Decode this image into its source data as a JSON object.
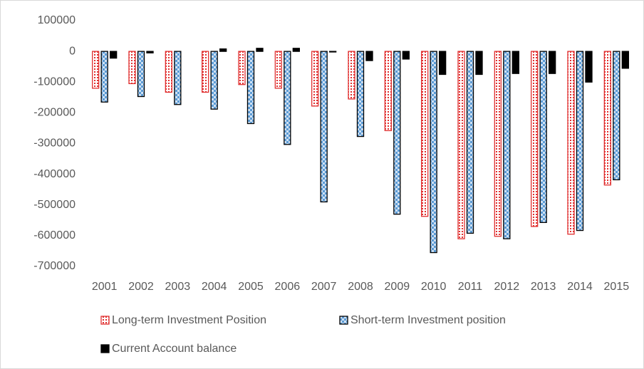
{
  "chart_data": {
    "type": "bar",
    "categories": [
      "2001",
      "2002",
      "2003",
      "2004",
      "2005",
      "2006",
      "2007",
      "2008",
      "2009",
      "2010",
      "2011",
      "2012",
      "2013",
      "2014",
      "2015"
    ],
    "series": [
      {
        "name": "Long-term Investment  Position",
        "color": "#e03030",
        "values": [
          -120000,
          -105000,
          -133000,
          -133000,
          -108000,
          -120000,
          -178000,
          -155000,
          -258000,
          -537000,
          -610000,
          -602000,
          -570000,
          -595000,
          -435000
        ]
      },
      {
        "name": "Short-term Investment position",
        "color": "#5b9bd5",
        "values": [
          -165000,
          -147000,
          -173000,
          -188000,
          -235000,
          -303000,
          -490000,
          -277000,
          -530000,
          -655000,
          -592000,
          -610000,
          -557000,
          -583000,
          -418000
        ]
      },
      {
        "name": "Current Account balance",
        "color": "#000000",
        "values": [
          -22000,
          -5000,
          0,
          8000,
          10000,
          10000,
          -2000,
          -30000,
          -25000,
          -75000,
          -75000,
          -72000,
          -72000,
          -100000,
          -55000
        ]
      }
    ],
    "ylim": [
      100000,
      -700000
    ],
    "yticks": [
      100000,
      0,
      -100000,
      -200000,
      -300000,
      -400000,
      -500000,
      -600000,
      -700000
    ],
    "grid": false
  }
}
